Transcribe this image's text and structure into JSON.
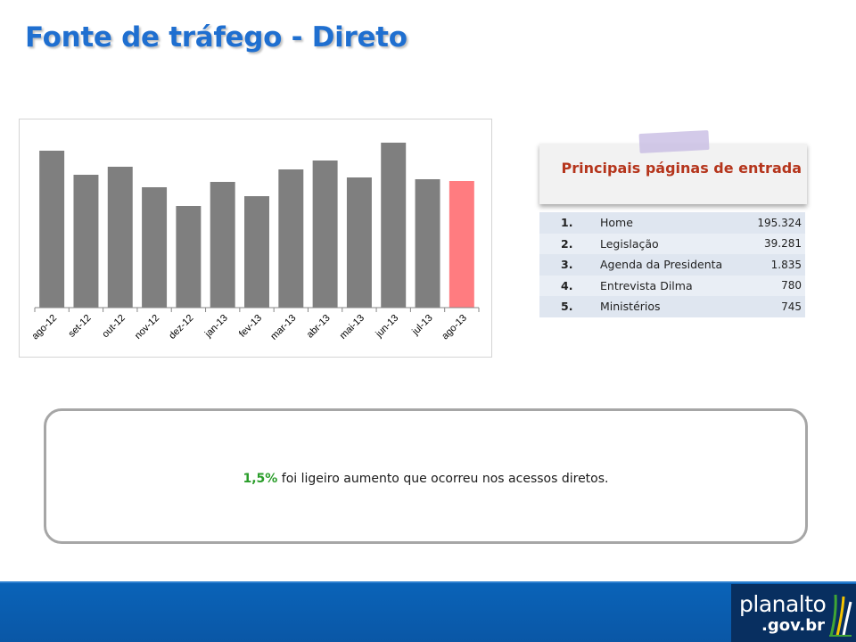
{
  "slide": {
    "title": "Fonte de tráfego - Direto"
  },
  "chart_data": {
    "type": "bar",
    "categories": [
      "ago-12",
      "set-12",
      "out-12",
      "nov-12",
      "dez-12",
      "jan-13",
      "fev-13",
      "mar-13",
      "abr-13",
      "mai-13",
      "jun-13",
      "jul-13",
      "ago-13"
    ],
    "values": [
      176,
      149,
      158,
      135,
      114,
      141,
      125,
      155,
      165,
      146,
      185,
      144,
      142
    ],
    "title": "",
    "xlabel": "",
    "ylabel": "",
    "ylim": [
      0,
      200
    ],
    "grid": false,
    "legend": "none",
    "colors": {
      "default": "#7f7f7f",
      "highlight": "#ff7c80"
    },
    "highlight_index": 12
  },
  "entry_pages": {
    "title": "Principais páginas de entrada",
    "rows": [
      {
        "rank": "1.",
        "page": "Home",
        "visits": "195.324"
      },
      {
        "rank": "2.",
        "page": "Legislação",
        "visits": "39.281"
      },
      {
        "rank": "3.",
        "page": "Agenda da Presidenta",
        "visits": "1.835"
      },
      {
        "rank": "4.",
        "page": "Entrevista Dilma",
        "visits": "780"
      },
      {
        "rank": "5.",
        "page": "Ministérios",
        "visits": "745"
      }
    ]
  },
  "summary": {
    "highlight": "1,5%",
    "text": " foi ligeiro aumento que ocorreu nos acessos diretos."
  },
  "footer": {
    "logo_word": "planalto",
    "logo_domain": ".gov.br",
    "logo_mark": "planalto-columns-icon"
  }
}
